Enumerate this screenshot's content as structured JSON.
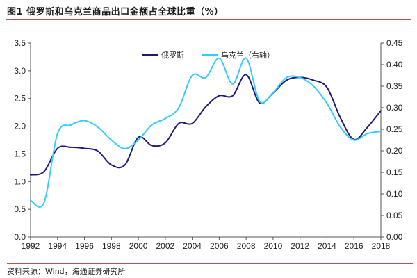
{
  "chart_data": {
    "type": "line",
    "title": "图1  俄罗斯和乌克兰商品出口金额占全球比重（%）",
    "source": "资料来源：Wind，海通证券研究所",
    "x": [
      1992,
      1993,
      1994,
      1995,
      1996,
      1997,
      1998,
      1999,
      2000,
      2001,
      2002,
      2003,
      2004,
      2005,
      2006,
      2007,
      2008,
      2009,
      2010,
      2011,
      2012,
      2013,
      2014,
      2015,
      2016,
      2017,
      2018
    ],
    "x_ticks": [
      "1992",
      "1994",
      "1996",
      "1998",
      "2000",
      "2002",
      "2004",
      "2006",
      "2008",
      "2010",
      "2012",
      "2014",
      "2016",
      "2018"
    ],
    "y_left": {
      "min": 0,
      "max": 3.5,
      "ticks": [
        "0.0",
        "0.5",
        "1.0",
        "1.5",
        "2.0",
        "2.5",
        "3.0",
        "3.5"
      ]
    },
    "y_right": {
      "min": 0,
      "max": 0.45,
      "ticks": [
        "0.00",
        "0.05",
        "0.10",
        "0.15",
        "0.20",
        "0.25",
        "0.30",
        "0.35",
        "0.40",
        "0.45"
      ]
    },
    "legend_position": "top-center",
    "series": [
      {
        "name": "俄罗斯",
        "axis": "left",
        "color": "#1f1a7a",
        "values": [
          1.12,
          1.18,
          1.6,
          1.62,
          1.6,
          1.55,
          1.3,
          1.3,
          1.8,
          1.65,
          1.7,
          2.05,
          2.05,
          2.35,
          2.55,
          2.55,
          2.93,
          2.42,
          2.6,
          2.83,
          2.88,
          2.83,
          2.7,
          2.15,
          1.76,
          1.98,
          2.28
        ]
      },
      {
        "name": "乌克兰（右轴）",
        "axis": "right",
        "color": "#33ccff",
        "values": [
          0.085,
          0.08,
          0.24,
          0.26,
          0.27,
          0.255,
          0.225,
          0.205,
          0.225,
          0.26,
          0.275,
          0.3,
          0.375,
          0.37,
          0.415,
          0.355,
          0.415,
          0.315,
          0.335,
          0.37,
          0.37,
          0.35,
          0.31,
          0.255,
          0.225,
          0.24,
          0.245
        ]
      }
    ]
  }
}
